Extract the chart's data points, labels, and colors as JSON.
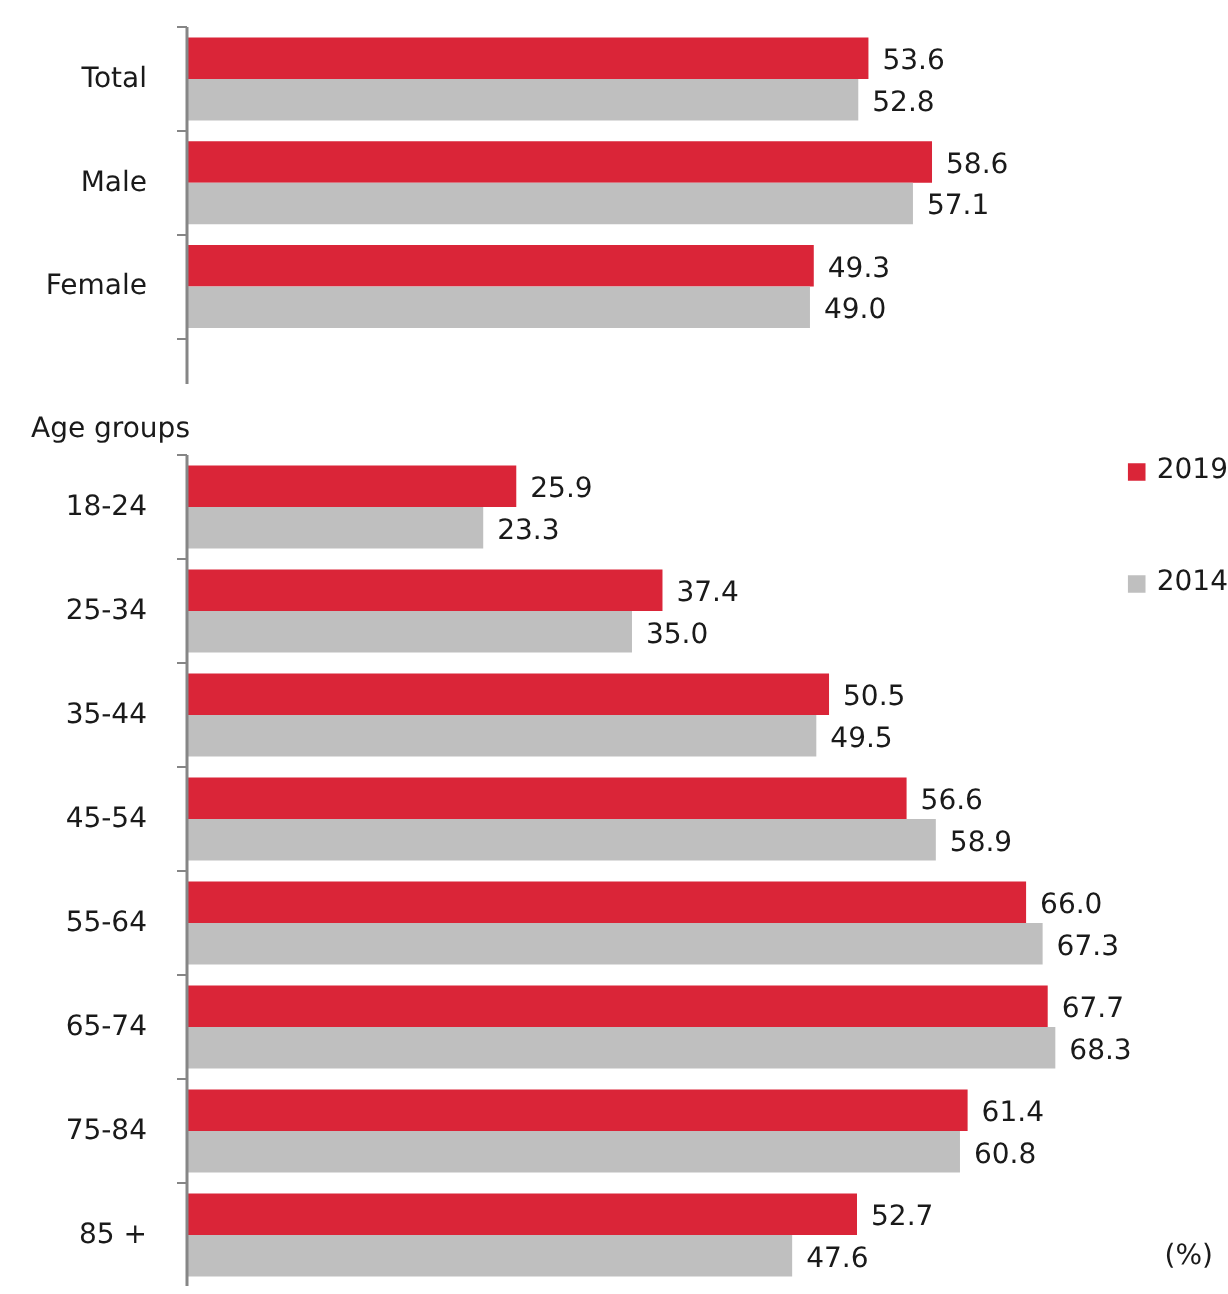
{
  "chart_data": [
    {
      "type": "bar",
      "orientation": "horizontal",
      "categories": [
        "Total",
        "Male",
        "Female"
      ],
      "series": [
        {
          "color": "#da2538",
          "values": [
            53.6,
            58.6,
            49.3
          ],
          "value_labels": [
            "53.6",
            "58.6",
            "49.3"
          ]
        },
        {
          "color": "#bfbfbf",
          "values": [
            52.8,
            57.1,
            49.0
          ],
          "value_labels": [
            "52.8",
            "57.1",
            "49.0"
          ]
        }
      ],
      "tick_labels": "y"
    },
    {
      "type": "bar",
      "orientation": "horizontal",
      "ylabel": "Age groups",
      "categories": [
        "18-24",
        "25-34",
        "35-44",
        "45-54",
        "55-64",
        "65-74",
        "75-84",
        "85 +"
      ],
      "series": [
        {
          "name": "2019",
          "color": "#da2538",
          "values": [
            25.9,
            37.4,
            50.5,
            56.6,
            66.0,
            67.7,
            61.4,
            52.7
          ],
          "value_labels": [
            "25.9",
            "37.4",
            "50.5",
            "56.6",
            "66.0",
            "67.7",
            "61.4",
            "52.7"
          ]
        },
        {
          "name": "2014",
          "color": "#bfbfbf",
          "values": [
            23.3,
            35.0,
            49.5,
            58.9,
            67.3,
            68.3,
            60.8,
            47.6
          ],
          "value_labels": [
            "23.3",
            "35.0",
            "49.5",
            "58.9",
            "67.3",
            "68.3",
            "60.8",
            "47.6"
          ]
        }
      ],
      "tick_labels": "y",
      "legend": "top right",
      "annotations": [
        "(%)"
      ]
    }
  ]
}
